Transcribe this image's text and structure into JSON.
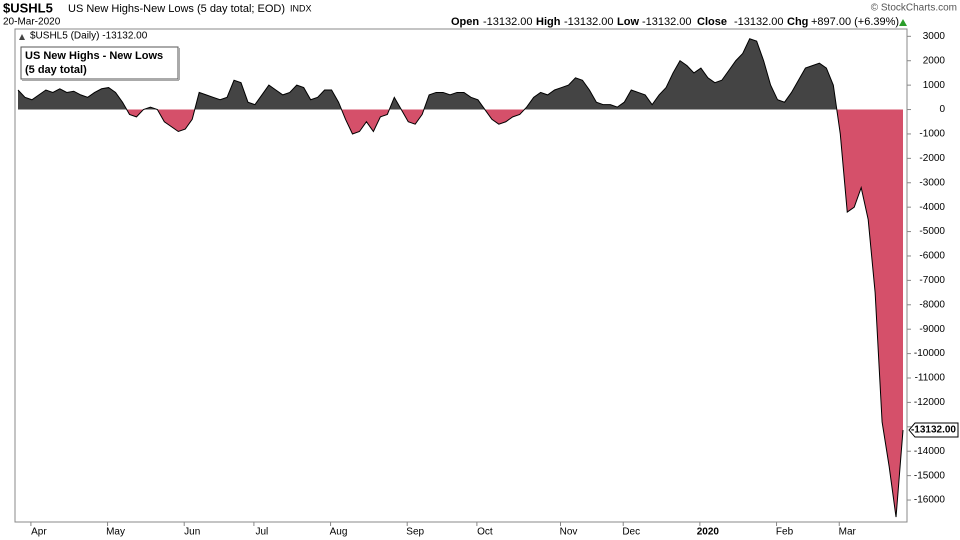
{
  "header": {
    "symbol": "$USHL5",
    "name": "US New Highs-New Lows (5 day total; EOD)",
    "exchange": "INDX",
    "date": "20-Mar-2020",
    "open_label": "Open",
    "open": "-13132.00",
    "high_label": "High",
    "high": "-13132.00",
    "low_label": "Low",
    "low": "-13132.00",
    "close_label": "Close",
    "close": "-13132.00",
    "chg_label": "Chg",
    "chg": "+897.00 (+6.39%)",
    "credit": "© StockCharts.com",
    "legend_line": "$USHL5 (Daily) -13132.00",
    "last_value": "-13132.00"
  },
  "chart_data": {
    "type": "area",
    "legend": [
      "US New Highs - New Lows",
      "(5 day total)"
    ],
    "pos_color": "#444444",
    "neg_color": "#d5506a",
    "line_color": "#000000",
    "ylim": [
      -16900,
      3300
    ],
    "yticks": [
      3000,
      2000,
      1000,
      0,
      -1000,
      -2000,
      -3000,
      -4000,
      -5000,
      -6000,
      -7000,
      -8000,
      -9000,
      -10000,
      -11000,
      -12000,
      -13000,
      -14000,
      -15000,
      -16000
    ],
    "grid": false,
    "categories": [
      null,
      null,
      null,
      "Apr",
      null,
      null,
      null,
      null,
      null,
      null,
      null,
      null,
      null,
      null,
      "May",
      null,
      null,
      null,
      null,
      null,
      null,
      null,
      null,
      null,
      null,
      "Jun",
      null,
      null,
      null,
      null,
      null,
      null,
      null,
      null,
      null,
      "Jul",
      null,
      null,
      null,
      null,
      null,
      null,
      null,
      null,
      null,
      null,
      "Aug",
      null,
      null,
      null,
      null,
      null,
      null,
      null,
      null,
      null,
      null,
      "Sep",
      null,
      null,
      null,
      null,
      null,
      null,
      null,
      null,
      null,
      "Oct",
      null,
      null,
      null,
      null,
      null,
      null,
      null,
      null,
      null,
      null,
      null,
      "Nov",
      null,
      null,
      null,
      null,
      null,
      null,
      null,
      null,
      "Dec",
      null,
      null,
      null,
      null,
      null,
      null,
      null,
      null,
      null,
      null,
      "2020",
      null,
      null,
      null,
      null,
      null,
      null,
      null,
      null,
      null,
      null,
      "Feb",
      null,
      null,
      null,
      null,
      null,
      null,
      null,
      null,
      "Mar",
      null,
      null,
      null,
      null,
      null,
      null,
      null,
      null
    ],
    "values": [
      800,
      500,
      400,
      600,
      800,
      700,
      850,
      700,
      750,
      600,
      500,
      700,
      850,
      900,
      700,
      300,
      -200,
      -300,
      0,
      100,
      0,
      -500,
      -700,
      -900,
      -800,
      -400,
      700,
      600,
      500,
      400,
      500,
      1200,
      1100,
      300,
      200,
      600,
      1000,
      800,
      600,
      700,
      1000,
      900,
      400,
      500,
      800,
      800,
      300,
      -400,
      -1000,
      -900,
      -500,
      -900,
      -300,
      -200,
      500,
      0,
      -500,
      -600,
      -200,
      600,
      700,
      700,
      600,
      700,
      700,
      500,
      400,
      0,
      -400,
      -600,
      -500,
      -300,
      -200,
      100,
      500,
      700,
      600,
      800,
      900,
      1000,
      1300,
      1200,
      800,
      300,
      200,
      200,
      100,
      300,
      800,
      700,
      600,
      200,
      600,
      900,
      1500,
      2000,
      1800,
      1500,
      1700,
      1300,
      1100,
      1200,
      1600,
      2000,
      2300,
      2900,
      2800,
      2000,
      1000,
      400,
      300,
      700,
      1200,
      1700,
      1800,
      1900,
      1700,
      1000,
      -1000,
      -4200,
      -4000,
      -3200,
      -4500,
      -7500,
      -12800,
      -14600,
      -16700,
      -13132
    ]
  }
}
